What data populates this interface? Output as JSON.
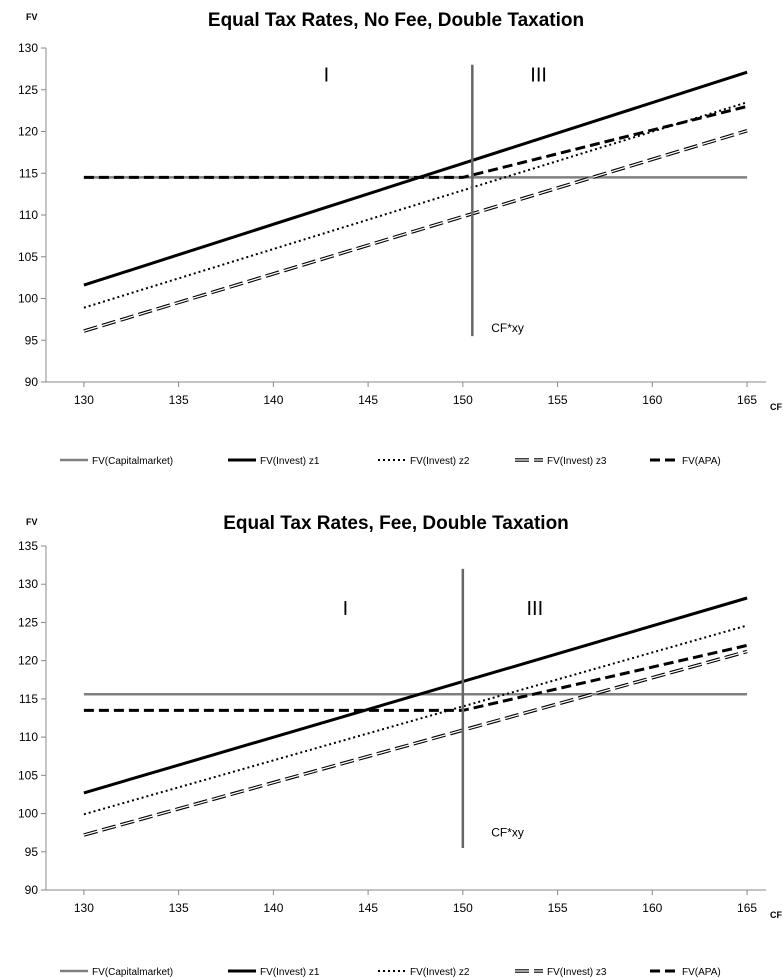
{
  "chart_data": [
    {
      "type": "line",
      "title": "Equal Tax Rates, No Fee, Double Taxation",
      "ylabel": "FV",
      "xlabel": "CF",
      "xlim": [
        128,
        166
      ],
      "ylim": [
        90,
        130
      ],
      "x_ticks": [
        130,
        135,
        140,
        145,
        150,
        155,
        160,
        165
      ],
      "y_ticks": [
        90,
        95,
        100,
        105,
        110,
        115,
        120,
        125,
        130
      ],
      "grid": false,
      "legend_position": "bottom",
      "divider_x": 150.5,
      "divider_y_range": [
        95.5,
        128
      ],
      "region_labels": [
        {
          "text": "I",
          "x": 142.8,
          "y": 126
        },
        {
          "text": "III",
          "x": 154,
          "y": 126
        }
      ],
      "annotations": [
        {
          "text": "CF*xy",
          "x": 151.5,
          "y": 96
        }
      ],
      "series": [
        {
          "name": "FV(Capitalmarket)",
          "color": "#808080",
          "style": "solid-gray",
          "x": [
            130,
            165
          ],
          "y": [
            114.5,
            114.5
          ]
        },
        {
          "name": "FV(Invest) z1",
          "color": "#000000",
          "style": "solid",
          "x": [
            130,
            165
          ],
          "y": [
            101.6,
            127.1
          ]
        },
        {
          "name": "FV(Invest) z2",
          "color": "#000000",
          "style": "dotted",
          "x": [
            130,
            165
          ],
          "y": [
            98.9,
            123.5
          ]
        },
        {
          "name": "FV(Invest) z3",
          "color": "#000000",
          "style": "double",
          "x": [
            130,
            165
          ],
          "y": [
            96.1,
            120.1
          ]
        },
        {
          "name": "FV(APA)",
          "color": "#000000",
          "style": "dashed",
          "x": [
            130,
            150,
            165
          ],
          "y": [
            114.5,
            114.5,
            123
          ]
        }
      ]
    },
    {
      "type": "line",
      "title": "Equal Tax Rates, Fee, Double Taxation",
      "ylabel": "FV",
      "xlabel": "CF",
      "xlim": [
        128,
        166
      ],
      "ylim": [
        90,
        135
      ],
      "x_ticks": [
        130,
        135,
        140,
        145,
        150,
        155,
        160,
        165
      ],
      "y_ticks": [
        90,
        95,
        100,
        105,
        110,
        115,
        120,
        125,
        130,
        135
      ],
      "grid": false,
      "legend_position": "bottom",
      "divider_x": 150,
      "divider_y_range": [
        95.5,
        132
      ],
      "region_labels": [
        {
          "text": "I",
          "x": 143.8,
          "y": 126
        },
        {
          "text": "III",
          "x": 153.8,
          "y": 126
        }
      ],
      "annotations": [
        {
          "text": "CF*xy",
          "x": 151.5,
          "y": 97
        }
      ],
      "series": [
        {
          "name": "FV(Capitalmarket)",
          "color": "#808080",
          "style": "solid-gray",
          "x": [
            130,
            165
          ],
          "y": [
            115.6,
            115.6
          ]
        },
        {
          "name": "FV(Invest) z1",
          "color": "#000000",
          "style": "solid",
          "x": [
            130,
            165
          ],
          "y": [
            102.7,
            128.2
          ]
        },
        {
          "name": "FV(Invest) z2",
          "color": "#000000",
          "style": "dotted",
          "x": [
            130,
            165
          ],
          "y": [
            99.9,
            124.6
          ]
        },
        {
          "name": "FV(Invest) z3",
          "color": "#000000",
          "style": "double",
          "x": [
            130,
            165
          ],
          "y": [
            97.2,
            121.2
          ]
        },
        {
          "name": "FV(APA)",
          "color": "#000000",
          "style": "dashed",
          "x": [
            130,
            150,
            165
          ],
          "y": [
            113.5,
            113.5,
            122
          ]
        }
      ]
    }
  ]
}
